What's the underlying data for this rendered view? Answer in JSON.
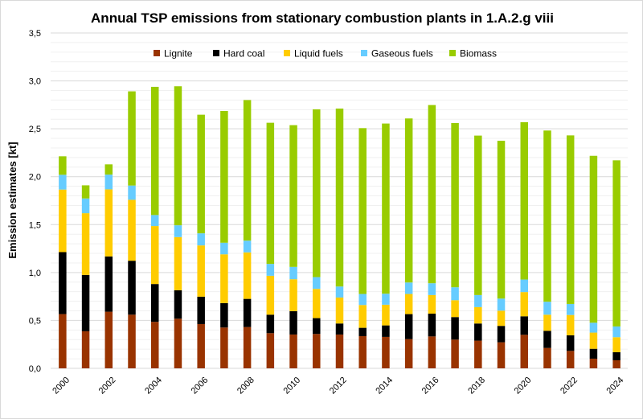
{
  "chart_data": {
    "type": "bar",
    "stacked": true,
    "title": "Annual TSP emissions from stationary combustion plants in 1.A.2.g viii",
    "xlabel": "",
    "ylabel": "Emission estimates [kt]",
    "ylim": [
      0,
      3.5
    ],
    "yticks": [
      "0,0",
      "0,5",
      "1,0",
      "1,5",
      "2,0",
      "2,5",
      "3,0",
      "3,5"
    ],
    "grid": true,
    "legend": "top",
    "categories": [
      "2000",
      "2001",
      "2002",
      "2003",
      "2004",
      "2005",
      "2006",
      "2007",
      "2008",
      "2009",
      "2010",
      "2011",
      "2012",
      "2013",
      "2014",
      "2015",
      "2016",
      "2017",
      "2018",
      "2019",
      "2020",
      "2021",
      "2022",
      "2023",
      "2024"
    ],
    "xtick_labels": [
      "2000",
      "2002",
      "2004",
      "2006",
      "2008",
      "2010",
      "2012",
      "2014",
      "2016",
      "2018",
      "2020",
      "2022",
      "2024"
    ],
    "series": [
      {
        "name": "Lignite",
        "color": "#993300",
        "values": [
          0.566,
          0.387,
          0.591,
          0.56,
          0.485,
          0.518,
          0.462,
          0.426,
          0.431,
          0.367,
          0.353,
          0.359,
          0.353,
          0.336,
          0.328,
          0.305,
          0.333,
          0.3,
          0.289,
          0.272,
          0.35,
          0.213,
          0.182,
          0.101,
          0.084
        ]
      },
      {
        "name": "Hard coal",
        "color": "#000000",
        "values": [
          0.647,
          0.588,
          0.577,
          0.563,
          0.395,
          0.297,
          0.286,
          0.255,
          0.294,
          0.193,
          0.244,
          0.165,
          0.115,
          0.087,
          0.12,
          0.261,
          0.238,
          0.235,
          0.179,
          0.171,
          0.193,
          0.179,
          0.163,
          0.103,
          0.084
        ]
      },
      {
        "name": "Liquid fuels",
        "color": "#ffcc00",
        "values": [
          0.653,
          0.644,
          0.7,
          0.636,
          0.605,
          0.555,
          0.535,
          0.509,
          0.485,
          0.406,
          0.333,
          0.305,
          0.271,
          0.238,
          0.216,
          0.21,
          0.194,
          0.176,
          0.171,
          0.159,
          0.253,
          0.168,
          0.212,
          0.169,
          0.157
        ]
      },
      {
        "name": "Gaseous fuels",
        "color": "#66ccff",
        "values": [
          0.154,
          0.154,
          0.154,
          0.149,
          0.115,
          0.123,
          0.126,
          0.121,
          0.123,
          0.124,
          0.129,
          0.123,
          0.115,
          0.115,
          0.115,
          0.12,
          0.123,
          0.135,
          0.126,
          0.126,
          0.131,
          0.135,
          0.115,
          0.103,
          0.112
        ]
      },
      {
        "name": "Biomass",
        "color": "#99cc00",
        "values": [
          0.193,
          0.137,
          0.107,
          0.983,
          1.338,
          1.451,
          1.238,
          1.375,
          1.467,
          1.473,
          1.479,
          1.751,
          1.857,
          1.731,
          1.776,
          1.712,
          1.86,
          1.714,
          1.664,
          1.647,
          1.642,
          1.787,
          1.759,
          1.742,
          1.734
        ]
      }
    ]
  }
}
